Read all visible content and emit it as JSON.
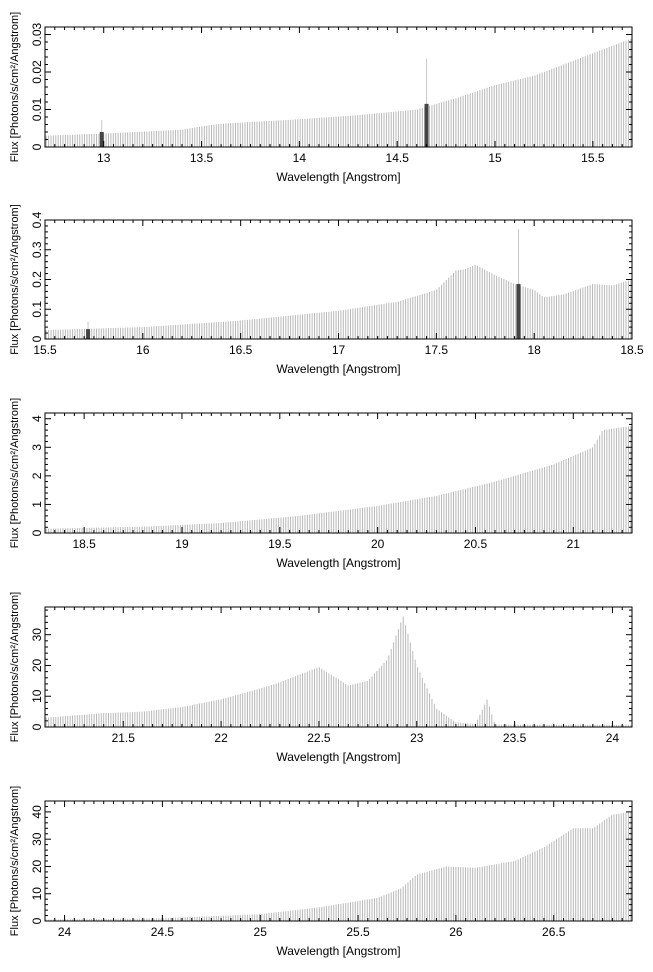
{
  "chart_data": [
    {
      "type": "bar",
      "xlabel": "Wavelength [Angstrom]",
      "ylabel": "Flux [Photons/s/cm²/Angstrom]",
      "xlim": [
        12.7,
        15.7
      ],
      "ylim": [
        0,
        0.032
      ],
      "x_ticks": [
        "13",
        "13.5",
        "14",
        "14.5",
        "15",
        "15.5"
      ],
      "y_ticks": [
        "0",
        "0.01",
        "0.02",
        "0.03"
      ],
      "continuum": [
        [
          12.7,
          0.003
        ],
        [
          13.0,
          0.0036
        ],
        [
          13.4,
          0.0046
        ],
        [
          13.5,
          0.0055
        ],
        [
          13.6,
          0.0062
        ],
        [
          14.0,
          0.0074
        ],
        [
          14.3,
          0.0085
        ],
        [
          14.6,
          0.01
        ],
        [
          14.8,
          0.013
        ],
        [
          15.0,
          0.0165
        ],
        [
          15.2,
          0.019
        ],
        [
          15.4,
          0.023
        ],
        [
          15.7,
          0.029
        ]
      ],
      "highlighted_bars": [
        {
          "x": 12.99,
          "value": 0.004,
          "peak": 0.0072
        },
        {
          "x": 14.65,
          "value": 0.0115,
          "peak": 0.0235
        }
      ],
      "grid": false
    },
    {
      "type": "bar",
      "xlabel": "Wavelength [Angstrom]",
      "ylabel": "Flux [Photons/s/cm²/Angstrom]",
      "xlim": [
        15.5,
        18.5
      ],
      "ylim": [
        0,
        0.4
      ],
      "x_ticks": [
        "15.5",
        "16",
        "16.5",
        "17",
        "17.5",
        "18",
        "18.5"
      ],
      "y_ticks": [
        "0",
        "0.1",
        "0.2",
        "0.3",
        "0.4"
      ],
      "continuum": [
        [
          15.5,
          0.03
        ],
        [
          16.0,
          0.04
        ],
        [
          16.5,
          0.062
        ],
        [
          17.0,
          0.095
        ],
        [
          17.3,
          0.125
        ],
        [
          17.5,
          0.165
        ],
        [
          17.6,
          0.23
        ],
        [
          17.65,
          0.235
        ],
        [
          17.7,
          0.25
        ],
        [
          17.8,
          0.215
        ],
        [
          17.9,
          0.185
        ],
        [
          18.0,
          0.165
        ],
        [
          18.05,
          0.14
        ],
        [
          18.15,
          0.15
        ],
        [
          18.3,
          0.185
        ],
        [
          18.4,
          0.18
        ],
        [
          18.5,
          0.2
        ]
      ],
      "highlighted_bars": [
        {
          "x": 15.72,
          "value": 0.033,
          "peak": 0.058
        },
        {
          "x": 17.92,
          "value": 0.185,
          "peak": 0.37
        }
      ],
      "grid": false
    },
    {
      "type": "bar",
      "xlabel": "Wavelength [Angstrom]",
      "ylabel": "Flux [Photons/s/cm²/Angstrom]",
      "xlim": [
        18.3,
        21.3
      ],
      "ylim": [
        0,
        4.2
      ],
      "x_ticks": [
        "18.5",
        "19",
        "19.5",
        "20",
        "20.5",
        "21"
      ],
      "y_ticks": [
        "0",
        "1",
        "2",
        "3",
        "4"
      ],
      "continuum": [
        [
          18.3,
          0.15
        ],
        [
          18.8,
          0.22
        ],
        [
          19.2,
          0.35
        ],
        [
          19.6,
          0.6
        ],
        [
          20.0,
          0.95
        ],
        [
          20.3,
          1.3
        ],
        [
          20.6,
          1.8
        ],
        [
          20.9,
          2.4
        ],
        [
          21.1,
          3.0
        ],
        [
          21.15,
          3.6
        ],
        [
          21.3,
          3.75
        ]
      ],
      "highlighted_bars": [],
      "grid": false
    },
    {
      "type": "bar",
      "xlabel": "Wavelength [Angstrom]",
      "ylabel": "Flux [Photons/s/cm²/Angstrom]",
      "xlim": [
        21.1,
        24.1
      ],
      "ylim": [
        0,
        39
      ],
      "x_ticks": [
        "21.5",
        "22",
        "22.5",
        "23",
        "23.5",
        "24"
      ],
      "y_ticks": [
        "0",
        "10",
        "20",
        "30"
      ],
      "continuum": [
        [
          21.1,
          3.0
        ],
        [
          21.4,
          4.5
        ],
        [
          21.6,
          5.0
        ],
        [
          21.8,
          6.5
        ],
        [
          22.0,
          9.0
        ],
        [
          22.2,
          12.5
        ],
        [
          22.3,
          14.5
        ],
        [
          22.4,
          17.0
        ],
        [
          22.5,
          19.5
        ],
        [
          22.6,
          15.5
        ],
        [
          22.65,
          13.5
        ],
        [
          22.75,
          15.0
        ],
        [
          22.85,
          22.0
        ],
        [
          22.93,
          36.0
        ],
        [
          23.0,
          20.0
        ],
        [
          23.1,
          6.0
        ],
        [
          23.2,
          1.5
        ],
        [
          23.3,
          1.0
        ],
        [
          23.36,
          9.0
        ],
        [
          23.4,
          0.8
        ],
        [
          24.1,
          0.7
        ]
      ],
      "highlighted_bars": [],
      "grid": false
    },
    {
      "type": "bar",
      "xlabel": "Wavelength [Angstrom]",
      "ylabel": "Flux [Photons/s/cm²/Angstrom]",
      "xlim": [
        23.9,
        26.9
      ],
      "ylim": [
        0,
        44
      ],
      "x_ticks": [
        "24",
        "24.5",
        "25",
        "25.5",
        "26",
        "26.5"
      ],
      "y_ticks": [
        "0",
        "10",
        "20",
        "30",
        "40"
      ],
      "continuum": [
        [
          23.9,
          0.5
        ],
        [
          24.5,
          1.0
        ],
        [
          25.0,
          2.5
        ],
        [
          25.3,
          5.0
        ],
        [
          25.6,
          8.5
        ],
        [
          25.72,
          12.0
        ],
        [
          25.8,
          17.0
        ],
        [
          25.9,
          19.0
        ],
        [
          25.95,
          20.0
        ],
        [
          26.1,
          19.5
        ],
        [
          26.3,
          22.0
        ],
        [
          26.45,
          27.0
        ],
        [
          26.6,
          34.0
        ],
        [
          26.7,
          34.0
        ],
        [
          26.8,
          39.0
        ],
        [
          26.9,
          40.0
        ]
      ],
      "highlighted_bars": [],
      "grid": false
    }
  ]
}
